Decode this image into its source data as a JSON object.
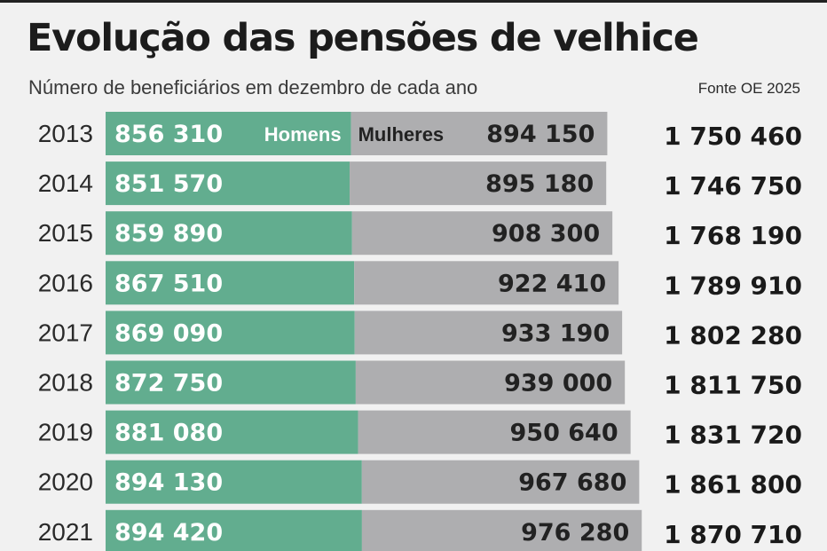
{
  "header": {
    "title": "Evolução das pensões de velhice",
    "subtitle": "Número de beneficiários em dezembro de cada ano",
    "source": "Fonte OE 2025"
  },
  "colors": {
    "men": "#62ad8f",
    "women": "#aeaeb0",
    "background": "#f1f1f1"
  },
  "chart_data": {
    "type": "bar",
    "orientation": "horizontal",
    "stacked": true,
    "title": "Evolução das pensões de velhice",
    "subtitle": "Número de beneficiários em dezembro de cada ano",
    "categories": [
      "2013",
      "2014",
      "2015",
      "2016",
      "2017",
      "2018",
      "2019",
      "2020",
      "2021"
    ],
    "series": [
      {
        "name": "Homens",
        "values": [
          856310,
          851570,
          859890,
          867510,
          869090,
          872750,
          881080,
          894130,
          894420
        ],
        "labels": [
          "856 310",
          "851 570",
          "859 890",
          "867 510",
          "869 090",
          "872 750",
          "881 080",
          "894 130",
          "894 420"
        ]
      },
      {
        "name": "Mulheres",
        "values": [
          894150,
          895180,
          908300,
          922410,
          933190,
          939000,
          950640,
          967680,
          976280
        ],
        "labels": [
          "894 150",
          "895 180",
          "908 300",
          "922 410",
          "933 190",
          "939 000",
          "950 640",
          "967 680",
          "976 280"
        ]
      }
    ],
    "totals": [
      1750460,
      1746750,
      1768190,
      1789910,
      1802280,
      1811750,
      1831720,
      1861800,
      1870710
    ],
    "total_labels": [
      "1 750 460",
      "1 746 750",
      "1 768 190",
      "1 789 910",
      "1 802 280",
      "1 811 750",
      "1 831 720",
      "1 861 800",
      "1 870 710"
    ],
    "legend": "inline on first bar",
    "grid": false
  }
}
